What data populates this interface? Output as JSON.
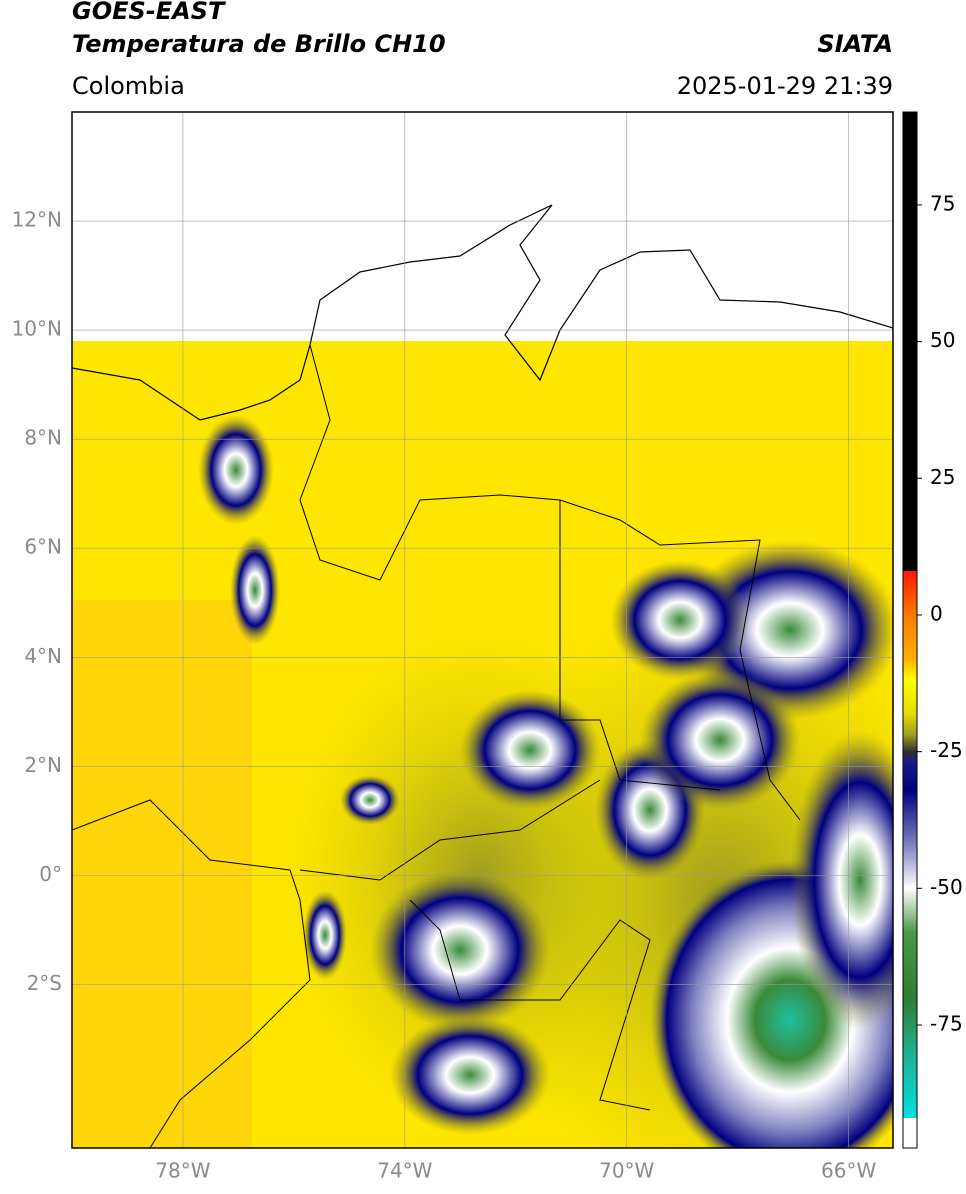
{
  "header": {
    "title": "GOES-EAST",
    "subtitle": "Temperatura de Brillo CH10",
    "region": "Colombia",
    "source": "SIATA",
    "datetime": "2025-01-29 21:39"
  },
  "map": {
    "xlim": [
      -80,
      -65.2
    ],
    "ylim": [
      -5,
      14
    ],
    "xticks": [
      {
        "value": -78,
        "label": "78°W"
      },
      {
        "value": -74,
        "label": "74°W"
      },
      {
        "value": -70,
        "label": "70°W"
      },
      {
        "value": -66,
        "label": "66°W"
      }
    ],
    "yticks": [
      {
        "value": 12,
        "label": "12°N"
      },
      {
        "value": 10,
        "label": "10°N"
      },
      {
        "value": 8,
        "label": "8°N"
      },
      {
        "value": 6,
        "label": "6°N"
      },
      {
        "value": 4,
        "label": "4°N"
      },
      {
        "value": 2,
        "label": "2°N"
      },
      {
        "value": 0,
        "label": "0°"
      },
      {
        "value": -2,
        "label": "2°S"
      }
    ],
    "grid": true
  },
  "colorbar": {
    "lim": [
      -97.5,
      92
    ],
    "ticks": [
      75,
      50,
      25,
      0,
      -25,
      -50,
      -75
    ],
    "colormap": [
      {
        "value": 92,
        "color": "#000000"
      },
      {
        "value": 8,
        "color": "#000000"
      },
      {
        "value": 8,
        "color": "#ff1a00"
      },
      {
        "value": 0,
        "color": "#ff7a00"
      },
      {
        "value": -8,
        "color": "#ffb000"
      },
      {
        "value": -12,
        "color": "#ffff00"
      },
      {
        "value": -18,
        "color": "#e4dc00"
      },
      {
        "value": -22,
        "color": "#9c9c20"
      },
      {
        "value": -25,
        "color": "#303030"
      },
      {
        "value": -27,
        "color": "#1a1a8c"
      },
      {
        "value": -32,
        "color": "#000080"
      },
      {
        "value": -42,
        "color": "#8080c0"
      },
      {
        "value": -50,
        "color": "#ffffff"
      },
      {
        "value": -58,
        "color": "#4a9a4a"
      },
      {
        "value": -70,
        "color": "#2e7d32"
      },
      {
        "value": -80,
        "color": "#20b090"
      },
      {
        "value": -92,
        "color": "#00e0e0"
      },
      {
        "value": -92,
        "color": "#ffffff"
      },
      {
        "value": -97.5,
        "color": "#ffffff"
      }
    ]
  }
}
